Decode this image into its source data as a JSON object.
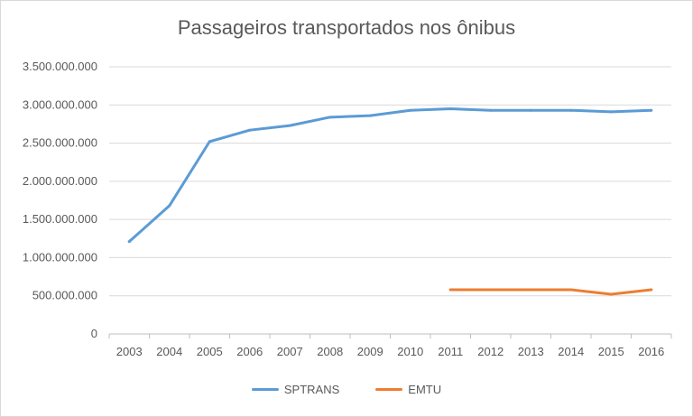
{
  "chart_data": {
    "type": "line",
    "title": "Passageiros transportados nos ônibus",
    "categories": [
      "2003",
      "2004",
      "2005",
      "2006",
      "2007",
      "2008",
      "2009",
      "2010",
      "2011",
      "2012",
      "2013",
      "2014",
      "2015",
      "2016"
    ],
    "ylim": [
      0,
      3500000000
    ],
    "yticks": [
      0,
      500000000,
      1000000000,
      1500000000,
      2000000000,
      2500000000,
      3000000000,
      3500000000
    ],
    "ytick_labels": [
      "0",
      "500.000.000",
      "1.000.000.000",
      "1.500.000.000",
      "2.000.000.000",
      "2.500.000.000",
      "3.000.000.000",
      "3.500.000.000"
    ],
    "grid": true,
    "legend_position": "bottom",
    "series": [
      {
        "name": "SPTRANS",
        "color": "#5b9bd5",
        "values": [
          1210000000,
          1680000000,
          2520000000,
          2670000000,
          2730000000,
          2840000000,
          2860000000,
          2930000000,
          2950000000,
          2930000000,
          2930000000,
          2930000000,
          2910000000,
          2930000000
        ]
      },
      {
        "name": "EMTU",
        "color": "#ed7d31",
        "values": [
          null,
          null,
          null,
          null,
          null,
          null,
          null,
          null,
          580000000,
          580000000,
          580000000,
          580000000,
          520000000,
          580000000
        ]
      }
    ]
  }
}
